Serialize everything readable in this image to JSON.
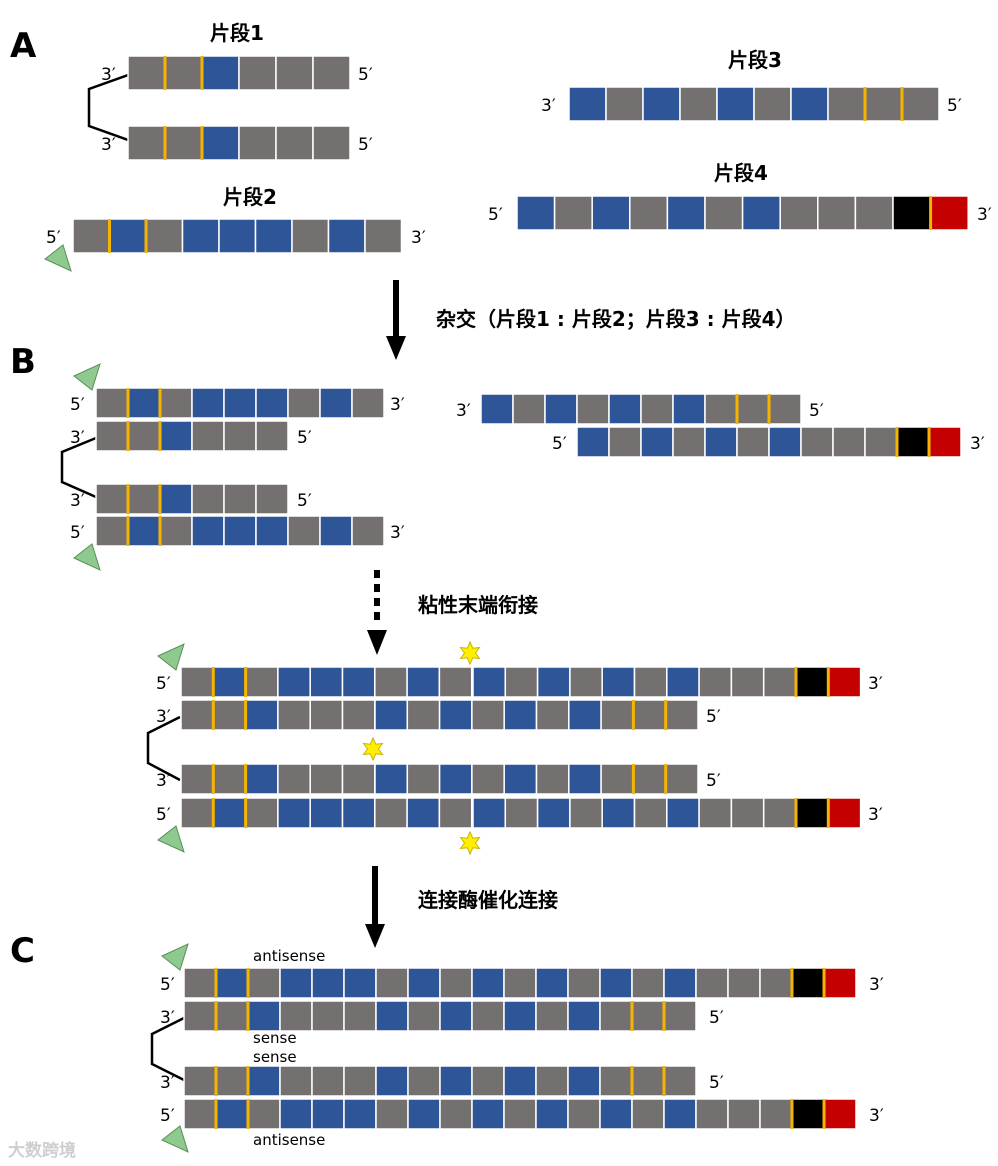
{
  "colors": {
    "gray": "#757070",
    "blue": "#2e5597",
    "black": "#000000",
    "red": "#c40000",
    "yellow_marker": "#f5b400",
    "triangle": "#8ec98e",
    "star": "#ffee00"
  },
  "sections": {
    "a": "A",
    "b": "B",
    "c": "C"
  },
  "fragments": {
    "f1": "片段1",
    "f2": "片段2",
    "f3": "片段3",
    "f4": "片段4"
  },
  "ends": {
    "three": "3′",
    "five": "5′"
  },
  "steps": {
    "hybridize": "杂交（片段1 : 片段2；片段3 : 片段4）",
    "sticky": "粘性末端衔接",
    "ligase": "连接酶催化连接"
  },
  "strand_labels": {
    "antisense_top": "antisense",
    "sense_1": "sense",
    "sense_2": "sense",
    "antisense_bottom": "antisense"
  },
  "watermark": "大数跨境",
  "strands": {
    "frag1": [
      "g",
      "g",
      "b",
      "g",
      "g",
      "g"
    ],
    "frag2": [
      "g",
      "b",
      "g",
      "b",
      "b",
      "b",
      "g",
      "b",
      "g"
    ],
    "frag3": [
      "b",
      "g",
      "b",
      "g",
      "b",
      "g",
      "b",
      "g",
      "g",
      "g"
    ],
    "frag4": [
      "b",
      "g",
      "b",
      "g",
      "b",
      "g",
      "b",
      "g",
      "g",
      "g",
      "K",
      "R"
    ],
    "full_long": [
      "g",
      "b",
      "g",
      "b",
      "b",
      "b",
      "g",
      "b",
      "g",
      "b",
      "g",
      "b",
      "g",
      "b",
      "g",
      "b",
      "g",
      "g",
      "g",
      "K",
      "R"
    ],
    "full_short": [
      "g",
      "g",
      "b",
      "g",
      "g",
      "g",
      "b",
      "g",
      "b",
      "g",
      "b",
      "g",
      "b",
      "g",
      "g",
      "g"
    ]
  }
}
